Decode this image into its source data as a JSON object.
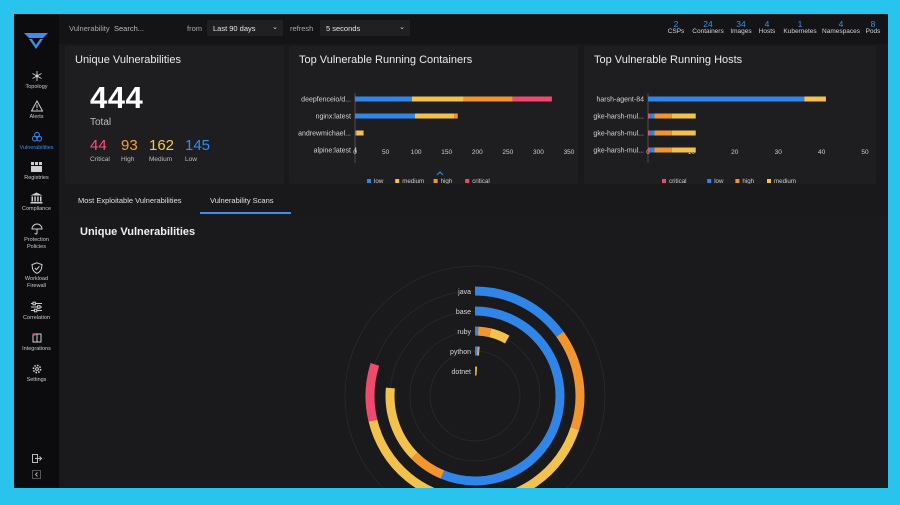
{
  "sidebar": {
    "items": [
      {
        "label": "Topology",
        "icon": "topology-icon"
      },
      {
        "label": "Alerts",
        "icon": "alert-triangle-icon"
      },
      {
        "label": "Vulnerabilities",
        "icon": "biohazard-icon"
      },
      {
        "label": "Registries",
        "icon": "registry-icon"
      },
      {
        "label": "Compliance",
        "icon": "compliance-building-icon"
      },
      {
        "label_line1": "Protection",
        "label_line2": "Policies",
        "icon": "umbrella-icon"
      },
      {
        "label_line1": "Workload",
        "label_line2": "Firewall",
        "icon": "shield-icon"
      },
      {
        "label": "Correlation",
        "icon": "sliders-icon"
      },
      {
        "label": "Integrations",
        "icon": "integrations-icon"
      },
      {
        "label": "Settings",
        "icon": "gear-icon"
      }
    ],
    "active_index": 2,
    "accent": "#3b8ef0"
  },
  "topbar": {
    "vulnerability_label": "Vulnerability",
    "search_placeholder": "Search...",
    "from_label": "from",
    "range_value": "Last 90 days",
    "refresh_label": "refresh",
    "refresh_value": "5 seconds",
    "stats": [
      {
        "value": "2",
        "label": "CSPs"
      },
      {
        "value": "24",
        "label": "Containers"
      },
      {
        "value": "34",
        "label": "Images"
      },
      {
        "value": "4",
        "label": "Hosts"
      },
      {
        "value": "1",
        "label": "Kubernetes"
      },
      {
        "value": "4",
        "label": "Namespaces"
      },
      {
        "value": "8",
        "label": "Pods"
      }
    ]
  },
  "unique_card": {
    "title": "Unique Vulnerabilities",
    "total": "444",
    "total_label": "Total",
    "severities": [
      {
        "value": "44",
        "label": "Critical",
        "color": "#ff4f7a"
      },
      {
        "value": "93",
        "label": "High",
        "color": "#f7a035"
      },
      {
        "value": "162",
        "label": "Medium",
        "color": "#f7c948"
      },
      {
        "value": "145",
        "label": "Low",
        "color": "#2f8df5"
      }
    ]
  },
  "colors": {
    "low": "#2f86e8",
    "medium": "#f2c24c",
    "high": "#f2952e",
    "critical": "#ef4a6d"
  },
  "chart_data": [
    {
      "type": "bar",
      "orientation": "horizontal",
      "stacked": true,
      "title": "Top Vulnerable Running Containers",
      "categories": [
        "deepfenceio/d...",
        "nginx:latest",
        "andrewmichael...",
        "alpine:latest"
      ],
      "series": [
        {
          "name": "low",
          "values": [
            93,
            98,
            2,
            0
          ]
        },
        {
          "name": "medium",
          "values": [
            85,
            64,
            12,
            2
          ]
        },
        {
          "name": "high",
          "values": [
            80,
            6,
            0,
            0
          ]
        },
        {
          "name": "critical",
          "values": [
            64,
            0,
            0,
            0
          ]
        }
      ],
      "xlim": [
        0,
        350
      ],
      "xticks": [
        0,
        50,
        100,
        150,
        200,
        250,
        300,
        350
      ],
      "legend": "bottom"
    },
    {
      "type": "bar",
      "orientation": "horizontal",
      "stacked": true,
      "title": "Top Vulnerable Running Hosts",
      "categories": [
        "harsh-agent-84",
        "gke-harsh-mul...",
        "gke-harsh-mul...",
        "gke-harsh-mul..."
      ],
      "series": [
        {
          "name": "critical",
          "values": [
            0,
            0.5,
            0.5,
            0.5
          ]
        },
        {
          "name": "low",
          "values": [
            36,
            1,
            1,
            1
          ]
        },
        {
          "name": "high",
          "values": [
            0,
            4,
            4,
            4
          ]
        },
        {
          "name": "medium",
          "values": [
            5,
            5.5,
            5.5,
            5.5
          ]
        }
      ],
      "xlim": [
        0,
        50
      ],
      "xticks": [
        0,
        10,
        20,
        30,
        40,
        50
      ],
      "legend": "bottom"
    },
    {
      "type": "bar",
      "variant": "radial-stacked",
      "title": "Unique Vulnerabilities",
      "categories": [
        "dotnet",
        "python",
        "ruby",
        "base",
        "java"
      ],
      "series": [
        {
          "name": "low",
          "values": [
            0,
            2,
            2,
            150,
            40
          ]
        },
        {
          "name": "high",
          "values": [
            1,
            1,
            8,
            17,
            40
          ]
        },
        {
          "name": "medium",
          "values": [
            2,
            1,
            12,
            37,
            110
          ]
        },
        {
          "name": "critical",
          "values": [
            0,
            0,
            0,
            0,
            23
          ]
        }
      ],
      "max": 200
    }
  ],
  "tabs": [
    {
      "label": "Most Exploitable Vulnerabilities"
    },
    {
      "label": "Vulnerability Scans"
    }
  ],
  "active_tab": 1
}
